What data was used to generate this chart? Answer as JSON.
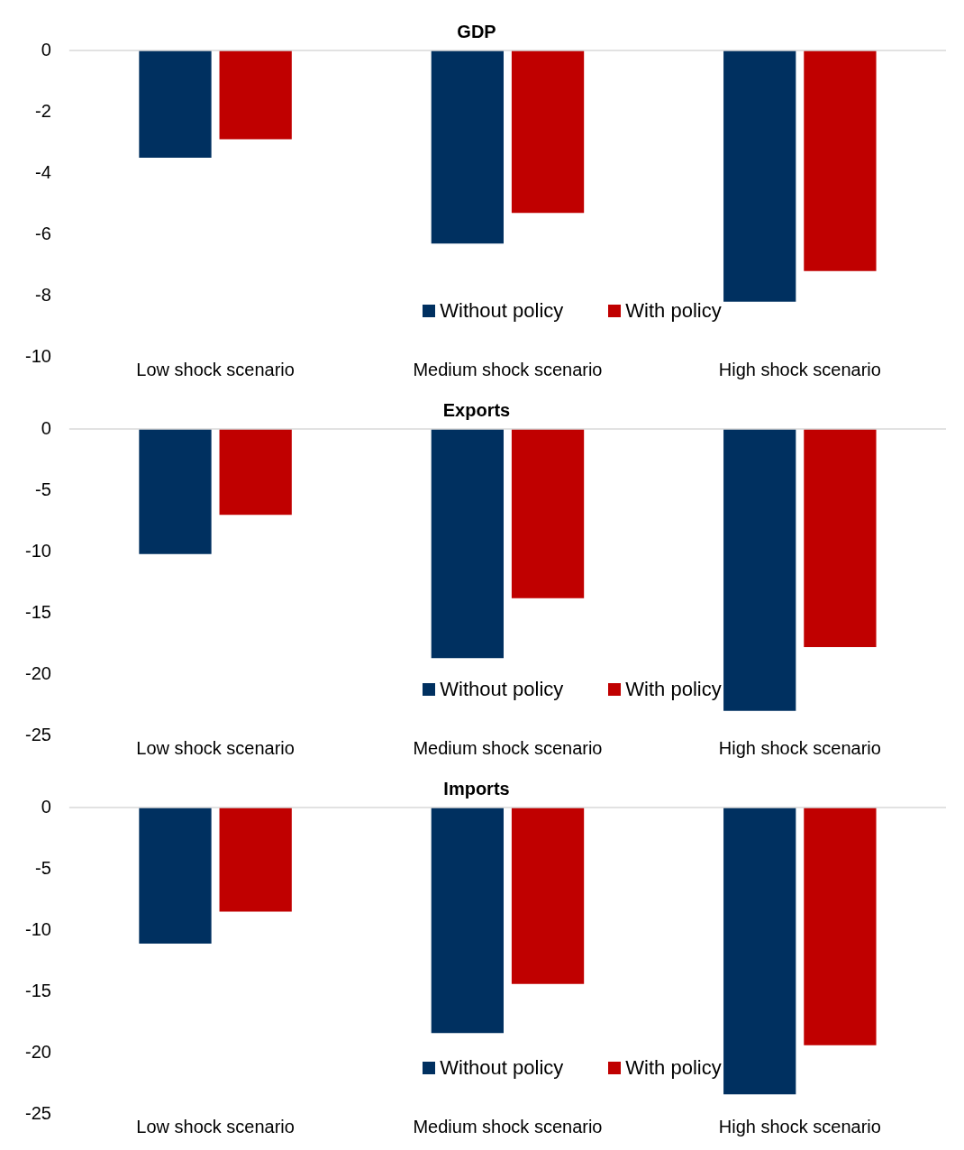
{
  "chart_data": [
    {
      "type": "bar",
      "title": "GDP",
      "categories": [
        "Low shock scenario",
        "Medium shock scenario",
        "High shock scenario"
      ],
      "series": [
        {
          "name": "Without policy",
          "color": "#003060",
          "values": [
            -3.5,
            -6.3,
            -8.2
          ]
        },
        {
          "name": "With policy",
          "color": "#c00000",
          "values": [
            -2.9,
            -5.3,
            -7.2
          ]
        }
      ],
      "ylim": [
        -10,
        0
      ],
      "yticks": [
        -10,
        -8,
        -6,
        -4,
        -2,
        0
      ],
      "legend": "bottom"
    },
    {
      "type": "bar",
      "title": "Exports",
      "categories": [
        "Low shock scenario",
        "Medium shock scenario",
        "High shock scenario"
      ],
      "series": [
        {
          "name": "Without policy",
          "color": "#003060",
          "values": [
            -10.2,
            -18.7,
            -23
          ]
        },
        {
          "name": "With policy",
          "color": "#c00000",
          "values": [
            -7,
            -13.8,
            -17.8
          ]
        }
      ],
      "ylim": [
        -25,
        0
      ],
      "yticks": [
        -25,
        -20,
        -15,
        -10,
        -5,
        0
      ],
      "legend": "bottom"
    },
    {
      "type": "bar",
      "title": "Imports",
      "categories": [
        "Low shock scenario",
        "Medium shock scenario",
        "High shock scenario"
      ],
      "series": [
        {
          "name": "Without policy",
          "color": "#003060",
          "values": [
            -11.1,
            -18.4,
            -23.4
          ]
        },
        {
          "name": "With policy",
          "color": "#c00000",
          "values": [
            -8.5,
            -14.4,
            -19.4
          ]
        }
      ],
      "ylim": [
        -25,
        0
      ],
      "yticks": [
        -25,
        -20,
        -15,
        -10,
        -5,
        0
      ],
      "legend": "bottom"
    }
  ]
}
